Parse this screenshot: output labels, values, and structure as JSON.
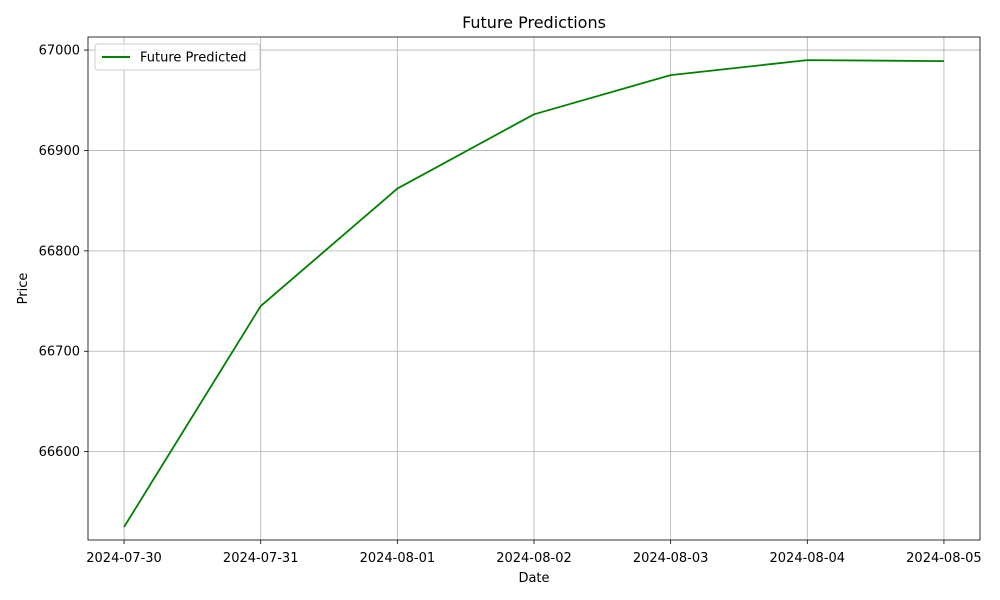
{
  "chart_data": {
    "type": "line",
    "title": "Future Predictions",
    "xlabel": "Date",
    "ylabel": "Price",
    "x": [
      "2024-07-30",
      "2024-07-31",
      "2024-08-01",
      "2024-08-02",
      "2024-08-03",
      "2024-08-04",
      "2024-08-05"
    ],
    "series": [
      {
        "name": "Future Predicted",
        "color": "#008000",
        "values": [
          66525,
          66745,
          66862,
          66936,
          66975,
          66990,
          66989
        ]
      }
    ],
    "xlim": [
      "2024-07-29 17:40",
      "2024-08-05 06:20"
    ],
    "ylim": [
      66512,
      67013
    ],
    "yticks": [
      66600,
      66700,
      66800,
      66900,
      67000
    ],
    "xticks": [
      "2024-07-30",
      "2024-07-31",
      "2024-08-01",
      "2024-08-02",
      "2024-08-03",
      "2024-08-04",
      "2024-08-05"
    ],
    "grid": true,
    "legend_position": "top-left"
  }
}
